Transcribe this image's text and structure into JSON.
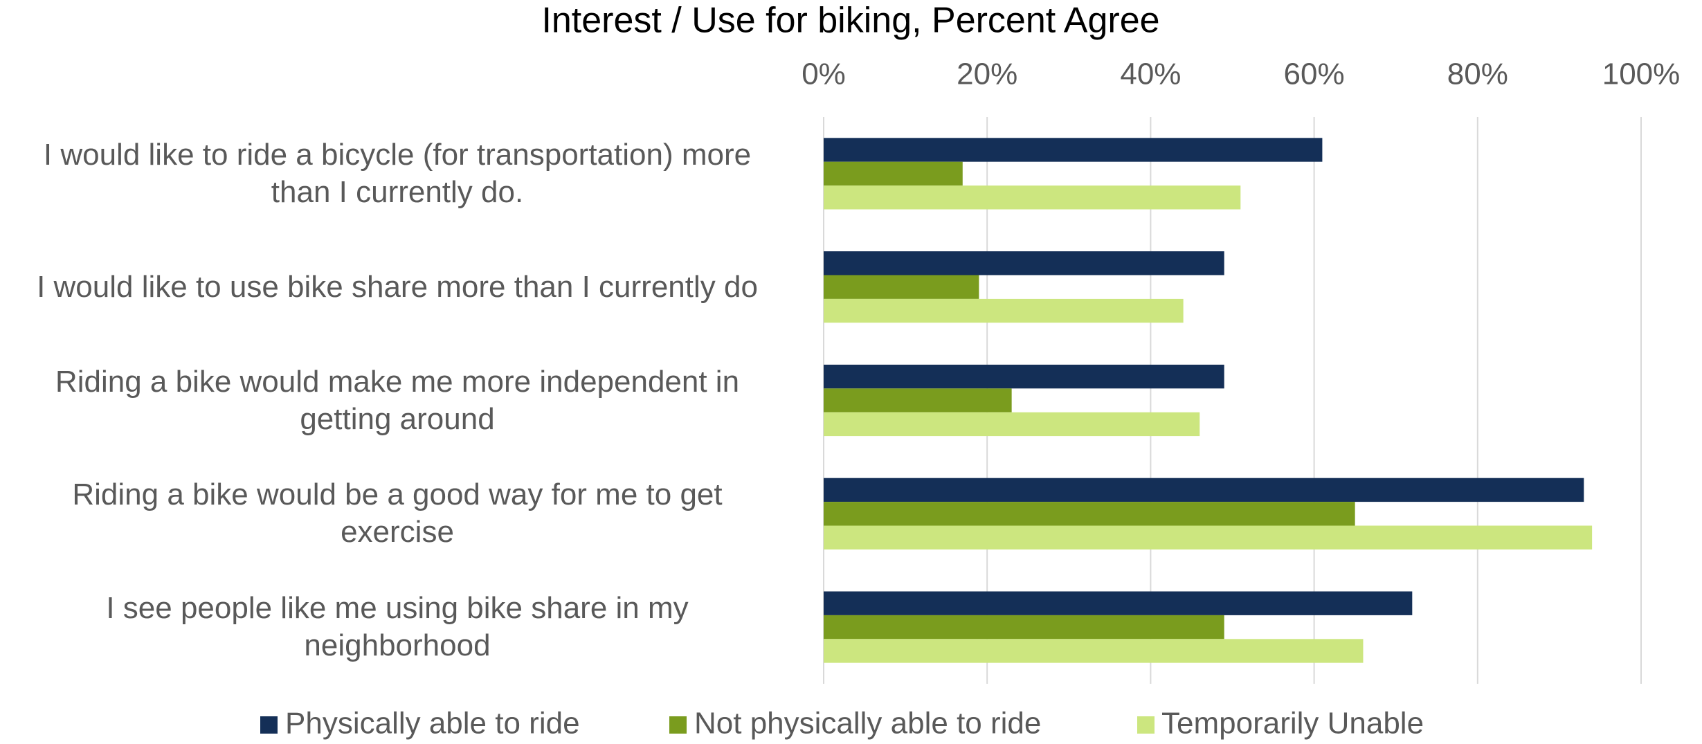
{
  "chart_data": {
    "type": "hbar",
    "title": "Interest / Use for biking, Percent Agree",
    "categories": [
      "I would like to ride a bicycle (for transportation) more\nthan I currently do.",
      "I would like to use bike share more than I currently do",
      "Riding a bike would make me more independent in\ngetting around",
      "Riding a bike would be a good way for me to get\nexercise",
      "I see people like me using bike share in my\nneighborhood"
    ],
    "series": [
      {
        "name": "Physically able to ride",
        "color": "#142f57",
        "values": [
          61,
          49,
          49,
          93,
          72
        ]
      },
      {
        "name": "Not physically able to ride",
        "color": "#7a9c1e",
        "values": [
          17,
          19,
          23,
          65,
          49
        ]
      },
      {
        "name": "Temporarily Unable",
        "color": "#cce67f",
        "values": [
          51,
          44,
          46,
          94,
          66
        ]
      }
    ],
    "xlim": [
      0,
      100
    ],
    "xticks": [
      {
        "value": 0,
        "label": "0%"
      },
      {
        "value": 20,
        "label": "20%"
      },
      {
        "value": 40,
        "label": "40%"
      },
      {
        "value": 60,
        "label": "60%"
      },
      {
        "value": 80,
        "label": "80%"
      },
      {
        "value": 100,
        "label": "100%"
      }
    ],
    "grid": true,
    "legend": "bottom"
  }
}
